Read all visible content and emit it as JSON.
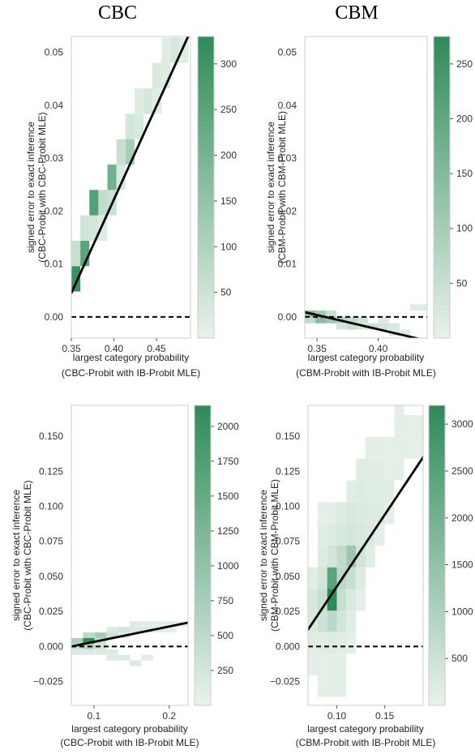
{
  "titles": [
    "CBC",
    "CBM"
  ],
  "colors": {
    "cmap_low": "#e9f2ec",
    "cmap_high": "#2d8b57",
    "line": "#000000",
    "zero_line": "#000000",
    "frame": "#cccccc"
  },
  "chart_data": [
    {
      "type": "heatmap",
      "column_title": "CBC",
      "xlabel": [
        "largest category probability",
        "(CBC-Probit with IB-Probit MLE)"
      ],
      "ylabel": [
        "signed error to exact inference",
        "(CBC-Probit with CBC-Probit MLE)"
      ],
      "xlim": [
        0.35,
        0.49
      ],
      "ylim": [
        -0.004,
        0.053
      ],
      "xticks": [
        0.35,
        0.4,
        0.45
      ],
      "xtick_labels": [
        "0.35",
        "0.40",
        "0.45"
      ],
      "yticks": [
        0.0,
        0.01,
        0.02,
        0.03,
        0.04,
        0.05
      ],
      "ytick_labels": [
        "0.00",
        "0.01",
        "0.02",
        "0.03",
        "0.04",
        "0.05"
      ],
      "bin_w": 0.0106,
      "bin_h": 0.0048,
      "cells": [
        [
          0.35,
          0.0048,
          310
        ],
        [
          0.35,
          0.0096,
          60
        ],
        [
          0.3606,
          0.0096,
          250
        ],
        [
          0.3606,
          0.0144,
          45
        ],
        [
          0.3712,
          0.0144,
          35
        ],
        [
          0.3712,
          0.0192,
          260
        ],
        [
          0.3818,
          0.0192,
          70
        ],
        [
          0.3818,
          0.0144,
          20
        ],
        [
          0.3924,
          0.0192,
          55
        ],
        [
          0.3924,
          0.024,
          205
        ],
        [
          0.403,
          0.024,
          30
        ],
        [
          0.403,
          0.0288,
          60
        ],
        [
          0.4136,
          0.0288,
          115
        ],
        [
          0.4136,
          0.0336,
          40
        ],
        [
          0.4242,
          0.0336,
          30
        ],
        [
          0.4242,
          0.0384,
          20
        ],
        [
          0.4348,
          0.0384,
          35
        ],
        [
          0.4454,
          0.0384,
          15
        ],
        [
          0.4454,
          0.0432,
          30
        ],
        [
          0.456,
          0.0432,
          20
        ],
        [
          0.456,
          0.048,
          15
        ],
        [
          0.4666,
          0.048,
          35
        ],
        [
          0.4772,
          0.048,
          15
        ]
      ],
      "fit_line": {
        "x": [
          0.35,
          0.49
        ],
        "y": [
          0.0045,
          0.054
        ]
      },
      "zero_line": 0.0,
      "colorbar": {
        "min": 0,
        "max": 330,
        "ticks": [
          50,
          100,
          150,
          200,
          250,
          300
        ],
        "tick_labels": [
          "50",
          "100",
          "150",
          "200",
          "250",
          "300"
        ]
      }
    },
    {
      "type": "heatmap",
      "column_title": "CBM",
      "xlabel": [
        "largest category probability",
        "(CBM-Probit with IB-Probit MLE)"
      ],
      "ylabel": [
        "signed error to exact inference",
        "(CBM-Probit with CBM-Probit MLE)"
      ],
      "xlim": [
        0.34,
        0.44
      ],
      "ylim": [
        -0.004,
        0.053
      ],
      "xticks": [
        0.35,
        0.4
      ],
      "xtick_labels": [
        "0.35",
        "0.40"
      ],
      "yticks": [
        0.0,
        0.01,
        0.02,
        0.03,
        0.04,
        0.05
      ],
      "ytick_labels": [
        "0.00",
        "0.01",
        "0.02",
        "0.03",
        "0.04",
        "0.05"
      ],
      "bin_w": 0.0086,
      "bin_h": 0.0012,
      "cells": [
        [
          0.34,
          0.0,
          150
        ],
        [
          0.34,
          -0.0012,
          60
        ],
        [
          0.3486,
          0.0,
          100
        ],
        [
          0.3486,
          -0.0012,
          140
        ],
        [
          0.3572,
          -0.0012,
          110
        ],
        [
          0.3572,
          0.0,
          50
        ],
        [
          0.3658,
          -0.0012,
          80
        ],
        [
          0.3658,
          -0.0024,
          30
        ],
        [
          0.3744,
          -0.0012,
          60
        ],
        [
          0.3744,
          -0.0024,
          50
        ],
        [
          0.383,
          -0.0012,
          40
        ],
        [
          0.383,
          -0.0024,
          30
        ],
        [
          0.3916,
          -0.0024,
          45
        ],
        [
          0.4002,
          -0.0024,
          35
        ],
        [
          0.4002,
          -0.0012,
          20
        ],
        [
          0.4088,
          -0.0024,
          25
        ],
        [
          0.4088,
          -0.0036,
          20
        ],
        [
          0.4174,
          -0.0036,
          20
        ],
        [
          0.426,
          0.0012,
          15
        ],
        [
          0.4346,
          0.0012,
          15
        ]
      ],
      "fit_line": {
        "x": [
          0.34,
          0.44
        ],
        "y": [
          0.0009,
          -0.0045
        ]
      },
      "zero_line": 0.0,
      "colorbar": {
        "min": 0,
        "max": 275,
        "ticks": [
          50,
          100,
          150,
          200,
          250
        ],
        "tick_labels": [
          "50",
          "100",
          "150",
          "200",
          "250"
        ]
      }
    },
    {
      "type": "heatmap",
      "column_title": "CBC",
      "xlabel": [
        "largest category probability",
        "(CBC-Probit with IB-Probit MLE)"
      ],
      "ylabel": [
        "signed error to exact inference",
        "(CBC-Probit with CBC-Probit MLE)"
      ],
      "xlim": [
        0.07,
        0.225
      ],
      "ylim": [
        -0.042,
        0.172
      ],
      "xticks": [
        0.1,
        0.2
      ],
      "xtick_labels": [
        "0.1",
        "0.2"
      ],
      "yticks": [
        -0.025,
        0.0,
        0.025,
        0.05,
        0.075,
        0.1,
        0.125,
        0.15
      ],
      "ytick_labels": [
        "−0.025",
        "0.000",
        "0.025",
        "0.050",
        "0.075",
        "0.100",
        "0.125",
        "0.150"
      ],
      "bin_w": 0.0155,
      "bin_h": 0.004,
      "cells": [
        [
          0.07,
          -0.002,
          400
        ],
        [
          0.07,
          0.002,
          700
        ],
        [
          0.07,
          -0.006,
          150
        ],
        [
          0.0855,
          0.002,
          2100
        ],
        [
          0.0855,
          0.006,
          500
        ],
        [
          0.0855,
          -0.002,
          600
        ],
        [
          0.0855,
          -0.006,
          150
        ],
        [
          0.101,
          0.006,
          800
        ],
        [
          0.101,
          0.002,
          400
        ],
        [
          0.101,
          -0.002,
          300
        ],
        [
          0.101,
          -0.006,
          150
        ],
        [
          0.1165,
          0.006,
          350
        ],
        [
          0.1165,
          0.01,
          150
        ],
        [
          0.1165,
          -0.006,
          150
        ],
        [
          0.1165,
          -0.01,
          120
        ],
        [
          0.132,
          0.01,
          250
        ],
        [
          0.132,
          0.006,
          150
        ],
        [
          0.132,
          -0.01,
          150
        ],
        [
          0.1475,
          0.01,
          200
        ],
        [
          0.1475,
          0.014,
          120
        ],
        [
          0.1475,
          -0.014,
          150
        ],
        [
          0.163,
          0.01,
          150
        ],
        [
          0.163,
          0.014,
          100
        ],
        [
          0.163,
          -0.01,
          100
        ],
        [
          0.1785,
          0.01,
          100
        ],
        [
          0.1785,
          0.014,
          80
        ],
        [
          0.194,
          0.014,
          80
        ],
        [
          0.194,
          0.01,
          60
        ],
        [
          0.2095,
          0.014,
          60
        ]
      ],
      "fit_line": {
        "x": [
          0.07,
          0.225
        ],
        "y": [
          0.0,
          0.017
        ]
      },
      "zero_line": 0.0,
      "colorbar": {
        "min": 0,
        "max": 2150,
        "ticks": [
          250,
          500,
          750,
          1000,
          1250,
          1500,
          1750,
          2000
        ],
        "tick_labels": [
          "250",
          "500",
          "750",
          "1000",
          "1250",
          "1500",
          "1750",
          "2000"
        ]
      }
    },
    {
      "type": "heatmap",
      "column_title": "CBM",
      "xlabel": [
        "largest category probability",
        "(CBM-Probit with IB-Probit MLE)"
      ],
      "ylabel": [
        "signed error to exact inference",
        "(CBM-Probit with CBM-Probit MLE)"
      ],
      "xlim": [
        0.07,
        0.19
      ],
      "ylim": [
        -0.042,
        0.172
      ],
      "xticks": [
        0.1,
        0.15
      ],
      "xtick_labels": [
        "0.10",
        "0.15"
      ],
      "yticks": [
        -0.025,
        0.0,
        0.025,
        0.05,
        0.075,
        0.1,
        0.125,
        0.15
      ],
      "ytick_labels": [
        "−0.025",
        "0.000",
        "0.025",
        "0.050",
        "0.075",
        "0.100",
        "0.125",
        "0.150"
      ],
      "bin_w": 0.01,
      "bin_h": 0.0155,
      "cells": [
        [
          0.07,
          0.01,
          250
        ],
        [
          0.07,
          0.0255,
          300
        ],
        [
          0.07,
          -0.005,
          150
        ],
        [
          0.07,
          -0.0205,
          100
        ],
        [
          0.07,
          0.041,
          150
        ],
        [
          0.08,
          0.0255,
          600
        ],
        [
          0.08,
          0.01,
          500
        ],
        [
          0.08,
          0.041,
          400
        ],
        [
          0.08,
          0.0565,
          200
        ],
        [
          0.08,
          -0.005,
          150
        ],
        [
          0.08,
          -0.0205,
          100
        ],
        [
          0.08,
          -0.036,
          100
        ],
        [
          0.08,
          0.072,
          150
        ],
        [
          0.08,
          0.0875,
          100
        ],
        [
          0.09,
          0.0255,
          3200
        ],
        [
          0.09,
          0.041,
          2400
        ],
        [
          0.09,
          0.01,
          800
        ],
        [
          0.09,
          0.0565,
          400
        ],
        [
          0.09,
          -0.005,
          200
        ],
        [
          0.09,
          0.072,
          200
        ],
        [
          0.09,
          0.0875,
          100
        ],
        [
          0.09,
          -0.0205,
          100
        ],
        [
          0.09,
          -0.036,
          100
        ],
        [
          0.1,
          0.041,
          800
        ],
        [
          0.1,
          0.0565,
          700
        ],
        [
          0.1,
          0.0255,
          600
        ],
        [
          0.1,
          0.01,
          400
        ],
        [
          0.1,
          0.072,
          300
        ],
        [
          0.1,
          0.0875,
          200
        ],
        [
          0.1,
          -0.005,
          150
        ],
        [
          0.1,
          -0.0205,
          100
        ],
        [
          0.1,
          -0.036,
          100
        ],
        [
          0.11,
          0.0565,
          1300
        ],
        [
          0.11,
          0.041,
          600
        ],
        [
          0.11,
          0.072,
          400
        ],
        [
          0.11,
          0.0875,
          300
        ],
        [
          0.11,
          0.0255,
          250
        ],
        [
          0.11,
          0.01,
          150
        ],
        [
          0.11,
          0.103,
          150
        ],
        [
          0.11,
          -0.005,
          100
        ],
        [
          0.12,
          0.0565,
          400
        ],
        [
          0.12,
          0.072,
          300
        ],
        [
          0.12,
          0.0875,
          250
        ],
        [
          0.12,
          0.041,
          200
        ],
        [
          0.12,
          0.103,
          200
        ],
        [
          0.12,
          0.1185,
          150
        ],
        [
          0.12,
          0.0255,
          100
        ],
        [
          0.13,
          0.072,
          250
        ],
        [
          0.13,
          0.0875,
          200
        ],
        [
          0.13,
          0.103,
          150
        ],
        [
          0.13,
          0.1185,
          150
        ],
        [
          0.13,
          0.0565,
          150
        ],
        [
          0.13,
          0.134,
          100
        ],
        [
          0.14,
          0.0875,
          200
        ],
        [
          0.14,
          0.103,
          150
        ],
        [
          0.14,
          0.1185,
          150
        ],
        [
          0.14,
          0.134,
          100
        ],
        [
          0.14,
          0.072,
          100
        ],
        [
          0.15,
          0.103,
          150
        ],
        [
          0.15,
          0.1185,
          100
        ],
        [
          0.15,
          0.134,
          100
        ],
        [
          0.15,
          0.0875,
          100
        ],
        [
          0.16,
          0.1185,
          100
        ],
        [
          0.16,
          0.134,
          100
        ],
        [
          0.16,
          0.1495,
          100
        ],
        [
          0.16,
          0.165,
          100
        ],
        [
          0.17,
          0.134,
          80
        ],
        [
          0.17,
          0.1495,
          80
        ],
        [
          0.18,
          0.1495,
          80
        ],
        [
          0.18,
          0.134,
          60
        ]
      ],
      "fit_line": {
        "x": [
          0.07,
          0.19
        ],
        "y": [
          0.012,
          0.135
        ]
      },
      "zero_line": 0.0,
      "colorbar": {
        "min": 0,
        "max": 3200,
        "ticks": [
          500,
          1000,
          1500,
          2000,
          2500,
          3000
        ],
        "tick_labels": [
          "500",
          "1000",
          "1500",
          "2000",
          "2500",
          "3000"
        ]
      }
    }
  ]
}
